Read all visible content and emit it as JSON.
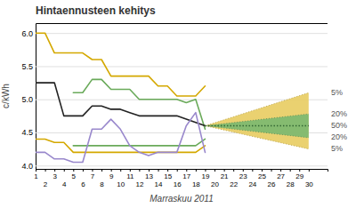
{
  "chart_data": {
    "type": "line",
    "title": "Hintaennusteen kehitys",
    "x_label": "Marraskuu 2011",
    "y_label": "c/kWh",
    "x": [
      1,
      2,
      3,
      4,
      5,
      6,
      7,
      8,
      9,
      10,
      11,
      12,
      13,
      14,
      15,
      16,
      17,
      18,
      19,
      20,
      21,
      22,
      23,
      24,
      25,
      26,
      27,
      28,
      29,
      30
    ],
    "xlim": [
      1,
      32
    ],
    "xticks": [
      1,
      2,
      3,
      4,
      5,
      6,
      7,
      8,
      9,
      10,
      11,
      12,
      13,
      14,
      15,
      16,
      17,
      18,
      19,
      20,
      21,
      22,
      23,
      24,
      25,
      26,
      27,
      28,
      29,
      30
    ],
    "ylim": [
      3.95,
      6.15
    ],
    "yticks": [
      {
        "value": 4.0,
        "label": "4.0"
      },
      4.5,
      {
        "value": 5.0,
        "label": "5.0"
      },
      5.5,
      {
        "value": 6.0,
        "label": "6.0"
      }
    ],
    "grid": true,
    "series": [
      {
        "color": "#d4a800",
        "values": [
          6.0,
          6.0,
          5.7,
          5.7,
          5.7,
          5.7,
          5.6,
          5.6,
          5.35,
          5.35,
          5.35,
          5.35,
          5.35,
          5.2,
          5.2,
          5.05,
          5.05,
          5.05,
          5.2,
          null,
          null,
          null,
          null,
          null,
          null,
          null,
          null,
          null,
          null,
          null
        ]
      },
      {
        "color": "#d4a800",
        "values": [
          4.4,
          4.4,
          4.35,
          4.35,
          4.2,
          4.2,
          4.2,
          4.2,
          4.2,
          4.2,
          4.2,
          4.2,
          4.2,
          4.2,
          4.2,
          4.2,
          4.2,
          4.2,
          4.3,
          null,
          null,
          null,
          null,
          null,
          null,
          null,
          null,
          null,
          null,
          null
        ]
      },
      {
        "color": "#6aaa5a",
        "values": [
          null,
          null,
          null,
          null,
          5.1,
          5.1,
          5.3,
          5.3,
          5.15,
          5.15,
          5.15,
          5.0,
          5.0,
          5.0,
          5.0,
          5.0,
          4.95,
          5.0,
          4.55,
          null,
          null,
          null,
          null,
          null,
          null,
          null,
          null,
          null,
          null,
          null
        ]
      },
      {
        "color": "#6aaa5a",
        "values": [
          null,
          null,
          null,
          null,
          4.3,
          4.3,
          4.3,
          4.3,
          4.3,
          4.3,
          4.3,
          4.3,
          4.3,
          4.3,
          4.3,
          4.3,
          4.3,
          4.3,
          4.4,
          null,
          null,
          null,
          null,
          null,
          null,
          null,
          null,
          null,
          null,
          null
        ]
      },
      {
        "color": "#222222",
        "values": [
          5.25,
          5.25,
          5.25,
          4.75,
          4.75,
          4.75,
          4.9,
          4.9,
          4.85,
          4.85,
          4.8,
          4.75,
          4.75,
          4.75,
          4.75,
          4.75,
          4.7,
          4.65,
          4.6,
          null,
          null,
          null,
          null,
          null,
          null,
          null,
          null,
          null,
          null,
          null
        ]
      },
      {
        "color": "#9988cc",
        "values": [
          4.2,
          4.2,
          4.1,
          4.1,
          4.05,
          4.05,
          4.55,
          4.55,
          4.7,
          4.55,
          4.3,
          4.2,
          4.15,
          4.2,
          4.2,
          4.2,
          4.6,
          4.8,
          4.2,
          null,
          null,
          null,
          null,
          null,
          null,
          null,
          null,
          null,
          null,
          null
        ]
      }
    ],
    "forecast": {
      "x": [
        19,
        30
      ],
      "median": {
        "value": 4.6,
        "color": "#336633"
      },
      "bands": [
        {
          "lower": 4.25,
          "upper": 5.1,
          "color": "#e8cc60"
        },
        {
          "lower": 4.42,
          "upper": 4.78,
          "color": "#7ab870"
        }
      ]
    },
    "annotations": [
      {
        "text": "5%",
        "y": 5.1
      },
      {
        "text": "20%",
        "y": 4.78
      },
      {
        "text": "50%",
        "y": 4.6
      },
      {
        "text": "20%",
        "y": 4.42
      },
      {
        "text": "5%",
        "y": 4.25
      }
    ]
  }
}
